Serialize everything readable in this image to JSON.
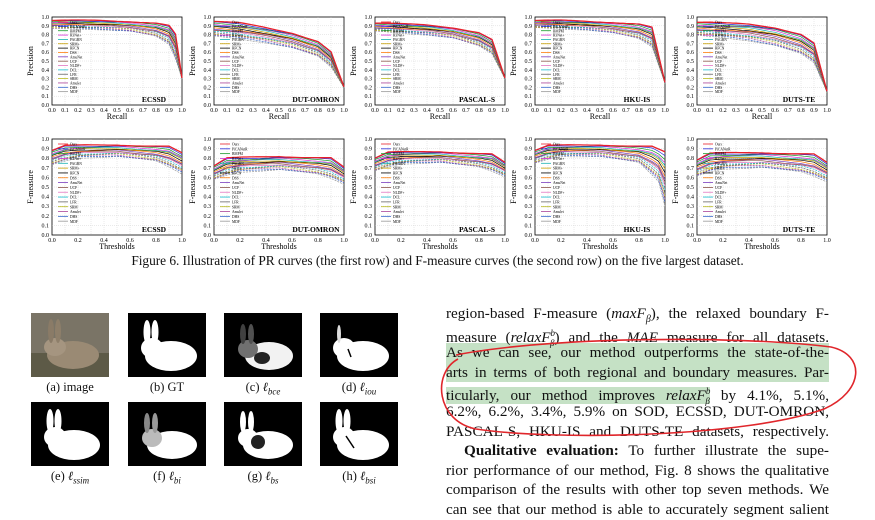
{
  "figure6": {
    "caption": "Figure 6. Illustration of PR curves (the first row) and F-measure curves (the second row) on the five largest dataset.",
    "legend": [
      "Ours",
      "PiCANetR",
      "BMPM",
      "R3Net+",
      "PAGRN",
      "SRM+",
      "RFCN",
      "DSS",
      "AmuNet",
      "UCF",
      "NLDF+",
      "DCL",
      "LFR",
      "SRM",
      "Amulet",
      "DHS",
      "MDF"
    ],
    "colors": [
      "#e8202a",
      "#2b2bd6",
      "#1a9a2a",
      "#d631d6",
      "#18b3b3",
      "#c8a000",
      "#000000",
      "#ff7f0e",
      "#7b3fbf",
      "#8c564b",
      "#e377c2",
      "#17becf",
      "#666666",
      "#bcbd22",
      "#aa4499",
      "#3366cc",
      "#999999"
    ],
    "pr_row": {
      "ylabel": "Precision",
      "xlabel": "Recall",
      "yticks": [
        "0.0",
        "0.1",
        "0.2",
        "0.3",
        "0.4",
        "0.5",
        "0.6",
        "0.7",
        "0.8",
        "0.9",
        "1.0"
      ],
      "xticks": [
        "0.0",
        "0.1",
        "0.2",
        "0.3",
        "0.4",
        "0.5",
        "0.6",
        "0.7",
        "0.8",
        "0.9",
        "1.0"
      ]
    },
    "fm_row": {
      "ylabel": "F-measure",
      "xlabel": "Thresholds",
      "yticks": [
        "0.0",
        "0.1",
        "0.2",
        "0.3",
        "0.4",
        "0.5",
        "0.6",
        "0.7",
        "0.8",
        "0.9",
        "1.0"
      ],
      "xticks": [
        "0.0",
        "0.2",
        "0.4",
        "0.6",
        "0.8",
        "1.0"
      ]
    },
    "datasets": [
      "ECSSD",
      "DUT-OMRON",
      "PASCAL-S",
      "HKU-IS",
      "DUTS-TE"
    ]
  },
  "chart_data": [
    {
      "type": "line",
      "title": "ECSSD",
      "xlabel": "Recall",
      "ylabel": "Precision",
      "xlim": [
        0,
        1
      ],
      "ylim": [
        0,
        1
      ],
      "grid": true,
      "legend_placement": "left",
      "series": [
        {
          "name": "Ours",
          "x": [
            0,
            0.2,
            0.4,
            0.6,
            0.8,
            0.9,
            0.95,
            1.0
          ],
          "y": [
            0.96,
            0.96,
            0.96,
            0.95,
            0.93,
            0.9,
            0.8,
            0.3
          ]
        },
        {
          "name": "MDF",
          "x": [
            0,
            0.2,
            0.4,
            0.6,
            0.8,
            0.9,
            1.0
          ],
          "y": [
            0.85,
            0.85,
            0.84,
            0.82,
            0.75,
            0.65,
            0.3
          ]
        }
      ]
    },
    {
      "type": "line",
      "title": "DUT-OMRON",
      "xlabel": "Recall",
      "ylabel": "Precision",
      "xlim": [
        0,
        1
      ],
      "ylim": [
        0,
        1
      ],
      "grid": true,
      "legend_placement": "left",
      "series": [
        {
          "name": "Ours",
          "x": [
            0,
            0.2,
            0.4,
            0.6,
            0.8,
            0.9,
            1.0
          ],
          "y": [
            0.95,
            0.93,
            0.88,
            0.82,
            0.72,
            0.6,
            0.2
          ]
        },
        {
          "name": "MDF",
          "x": [
            0,
            0.2,
            0.4,
            0.6,
            0.8,
            0.9,
            1.0
          ],
          "y": [
            0.75,
            0.72,
            0.68,
            0.62,
            0.52,
            0.4,
            0.2
          ]
        }
      ]
    },
    {
      "type": "line",
      "title": "PASCAL-S",
      "xlabel": "Recall",
      "ylabel": "Precision",
      "xlim": [
        0,
        1
      ],
      "ylim": [
        0,
        1
      ],
      "grid": true,
      "legend_placement": "left",
      "series": [
        {
          "name": "Ours",
          "x": [
            0,
            0.2,
            0.4,
            0.6,
            0.8,
            0.9,
            1.0
          ],
          "y": [
            0.93,
            0.92,
            0.91,
            0.88,
            0.82,
            0.74,
            0.3
          ]
        },
        {
          "name": "MDF",
          "x": [
            0,
            0.2,
            0.4,
            0.6,
            0.8,
            0.9,
            1.0
          ],
          "y": [
            0.82,
            0.8,
            0.78,
            0.74,
            0.64,
            0.55,
            0.3
          ]
        }
      ]
    },
    {
      "type": "line",
      "title": "HKU-IS",
      "xlabel": "Recall",
      "ylabel": "Precision",
      "xlim": [
        0,
        1
      ],
      "ylim": [
        0,
        1
      ],
      "grid": true,
      "legend_placement": "left",
      "series": [
        {
          "name": "Ours",
          "x": [
            0,
            0.2,
            0.4,
            0.6,
            0.8,
            0.9,
            1.0
          ],
          "y": [
            0.96,
            0.96,
            0.95,
            0.94,
            0.92,
            0.88,
            0.25
          ]
        },
        {
          "name": "MDF",
          "x": [
            0,
            0.2,
            0.4,
            0.6,
            0.8,
            0.9,
            1.0
          ],
          "y": [
            0.86,
            0.85,
            0.84,
            0.8,
            0.72,
            0.62,
            0.25
          ]
        }
      ]
    },
    {
      "type": "line",
      "title": "DUTS-TE",
      "xlabel": "Recall",
      "ylabel": "Precision",
      "xlim": [
        0,
        1
      ],
      "ylim": [
        0,
        1
      ],
      "grid": true,
      "legend_placement": "left",
      "series": [
        {
          "name": "Ours",
          "x": [
            0,
            0.2,
            0.4,
            0.6,
            0.8,
            0.9,
            1.0
          ],
          "y": [
            0.94,
            0.93,
            0.92,
            0.88,
            0.8,
            0.7,
            0.15
          ]
        },
        {
          "name": "MDF",
          "x": [
            0,
            0.2,
            0.4,
            0.6,
            0.8,
            0.9,
            1.0
          ],
          "y": [
            0.76,
            0.74,
            0.7,
            0.64,
            0.54,
            0.44,
            0.15
          ]
        }
      ]
    },
    {
      "type": "line",
      "title": "ECSSD",
      "xlabel": "Thresholds",
      "ylabel": "F-measure",
      "xlim": [
        0,
        1
      ],
      "ylim": [
        0,
        1
      ],
      "grid": true,
      "legend_placement": "left",
      "series": [
        {
          "name": "Ours",
          "x": [
            0,
            0.1,
            0.5,
            0.9,
            1.0
          ],
          "y": [
            0.88,
            0.93,
            0.94,
            0.92,
            0.85
          ]
        },
        {
          "name": "MDF",
          "x": [
            0,
            0.2,
            0.5,
            0.8,
            1.0
          ],
          "y": [
            0.7,
            0.78,
            0.8,
            0.74,
            0.6
          ]
        }
      ]
    },
    {
      "type": "line",
      "title": "DUT-OMRON",
      "xlabel": "Thresholds",
      "ylabel": "F-measure",
      "xlim": [
        0,
        1
      ],
      "ylim": [
        0,
        1
      ],
      "grid": true,
      "legend_placement": "left",
      "series": [
        {
          "name": "Ours",
          "x": [
            0,
            0.1,
            0.5,
            0.9,
            1.0
          ],
          "y": [
            0.72,
            0.8,
            0.82,
            0.8,
            0.7
          ]
        },
        {
          "name": "MDF",
          "x": [
            0,
            0.2,
            0.5,
            0.8,
            1.0
          ],
          "y": [
            0.55,
            0.63,
            0.66,
            0.6,
            0.5
          ]
        }
      ]
    },
    {
      "type": "line",
      "title": "PASCAL-S",
      "xlabel": "Thresholds",
      "ylabel": "F-measure",
      "xlim": [
        0,
        1
      ],
      "ylim": [
        0,
        1
      ],
      "grid": true,
      "legend_placement": "left",
      "series": [
        {
          "name": "Ours",
          "x": [
            0,
            0.1,
            0.5,
            0.9,
            1.0
          ],
          "y": [
            0.8,
            0.86,
            0.87,
            0.84,
            0.75
          ]
        },
        {
          "name": "MDF",
          "x": [
            0,
            0.2,
            0.5,
            0.8,
            1.0
          ],
          "y": [
            0.64,
            0.72,
            0.74,
            0.68,
            0.58
          ]
        }
      ]
    },
    {
      "type": "line",
      "title": "HKU-IS",
      "xlabel": "Thresholds",
      "ylabel": "F-measure",
      "xlim": [
        0,
        1
      ],
      "ylim": [
        0,
        1
      ],
      "grid": true,
      "legend_placement": "left",
      "series": [
        {
          "name": "Ours",
          "x": [
            0,
            0.1,
            0.5,
            0.9,
            1.0
          ],
          "y": [
            0.88,
            0.93,
            0.94,
            0.92,
            0.86
          ]
        },
        {
          "name": "MDF",
          "x": [
            0,
            0.2,
            0.5,
            0.8,
            0.95,
            1.0
          ],
          "y": [
            0.72,
            0.8,
            0.8,
            0.72,
            0.5,
            0.2
          ]
        }
      ]
    },
    {
      "type": "line",
      "title": "DUTS-TE",
      "xlabel": "Thresholds",
      "ylabel": "F-measure",
      "xlim": [
        0,
        1
      ],
      "ylim": [
        0,
        1
      ],
      "grid": true,
      "legend_placement": "left",
      "series": [
        {
          "name": "Ours",
          "x": [
            0,
            0.1,
            0.5,
            0.9,
            1.0
          ],
          "y": [
            0.78,
            0.85,
            0.86,
            0.84,
            0.75
          ]
        },
        {
          "name": "MDF",
          "x": [
            0,
            0.2,
            0.5,
            0.8,
            1.0
          ],
          "y": [
            0.58,
            0.66,
            0.68,
            0.62,
            0.52
          ]
        }
      ]
    }
  ],
  "figure7": {
    "labels": [
      {
        "prefix": "(a) image"
      },
      {
        "prefix": "(b) GT"
      },
      {
        "prefix": "(c) ",
        "sym": "ℓ",
        "sub": "bce"
      },
      {
        "prefix": "(d) ",
        "sym": "ℓ",
        "sub": "iou"
      },
      {
        "prefix": "(e) ",
        "sym": "ℓ",
        "sub": "ssim"
      },
      {
        "prefix": "(f) ",
        "sym": "ℓ",
        "sub": "bi"
      },
      {
        "prefix": "(g) ",
        "sym": "ℓ",
        "sub": "bs"
      },
      {
        "prefix": "(h) ",
        "sym": "ℓ",
        "sub": "bsi"
      }
    ]
  },
  "text": {
    "l1a": "region-based F-measure (",
    "l1b": "maxF",
    "l1c": "β",
    "l1d": "), the relaxed boundary F-",
    "l2a": "measure (",
    "l2b": "relaxF",
    "l2c": "b",
    "l2d": "β",
    "l2e": ") and the ",
    "l2f": "MAE",
    "l2g": " measure for all datasets.",
    "l3": "As we can see, our method outperforms the state-of-the-",
    "l4": "arts in terms of both regional and boundary measures. Par-",
    "l5a": "ticularly, our method improves ",
    "l5b": "relaxF",
    "l5c": "b",
    "l5d": "β",
    "l5e": " by 4.1%, 5.1%,",
    "l6": "6.2%, 6.2%, 3.4%, 5.9% on SOD, ECSSD, DUT-OMRON,",
    "l7": "PASCAL-S, HKU-IS and DUTS-TE datasets, respectively.",
    "l8a": "Qualitative evaluation:",
    "l8b": " To further illustrate the supe-",
    "l9": "rior performance of our method, Fig. 8 shows the qualitative",
    "l10": "comparison of the results with other top seven methods. We",
    "l11": "can see that our method is able to accurately segment salient"
  }
}
